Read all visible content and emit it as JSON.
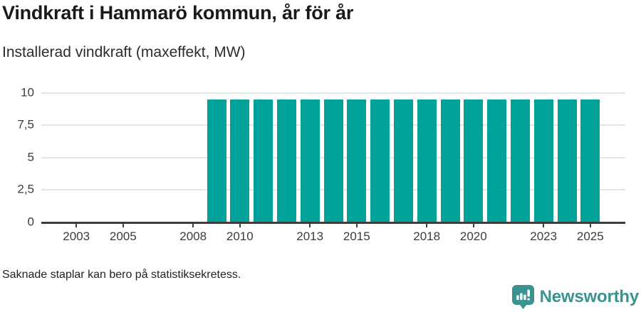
{
  "header": {
    "title": "Vindkraft i Hammarö kommun, år för år",
    "subtitle": "Installerad vindkraft (maxeffekt, MW)"
  },
  "footer": {
    "note": "Saknade staplar kan bero på statistiksekretess.",
    "brand": "Newsworthy"
  },
  "colors": {
    "bar": "#00a29a",
    "axis": "#3d3d3d",
    "grid": "#e4e4e4",
    "title_text": "#1a1a1a",
    "tick_text": "#3c3c3c",
    "brand_teal": "#3a938e"
  },
  "chart_data": {
    "type": "bar",
    "title": "Vindkraft i Hammarö kommun, år för år",
    "subtitle": "Installerad vindkraft (maxeffekt, MW)",
    "xlabel": "",
    "ylabel": "Installerad vindkraft (maxeffekt, MW)",
    "x_domain": [
      2002,
      2026
    ],
    "categories": [
      2009,
      2010,
      2011,
      2012,
      2013,
      2014,
      2015,
      2016,
      2017,
      2018,
      2019,
      2020,
      2021,
      2022,
      2023,
      2024,
      2025
    ],
    "values": [
      9.5,
      9.5,
      9.5,
      9.5,
      9.5,
      9.5,
      9.5,
      9.5,
      9.5,
      9.5,
      9.5,
      9.5,
      9.5,
      9.5,
      9.5,
      9.5,
      9.5
    ],
    "missing_years_note": "Saknade staplar kan bero på statistiksekretess.",
    "x_ticks": [
      2003,
      2005,
      2008,
      2010,
      2013,
      2015,
      2018,
      2020,
      2023,
      2025
    ],
    "x_tick_labels": [
      "2003",
      "2005",
      "2008",
      "2010",
      "2013",
      "2015",
      "2018",
      "2020",
      "2023",
      "2025"
    ],
    "y_ticks": [
      0,
      2.5,
      5,
      7.5,
      10
    ],
    "y_tick_labels": [
      "0",
      "2,5",
      "5",
      "7,5",
      "10"
    ],
    "ylim": [
      0,
      10
    ],
    "grid": true,
    "legend": "none"
  }
}
